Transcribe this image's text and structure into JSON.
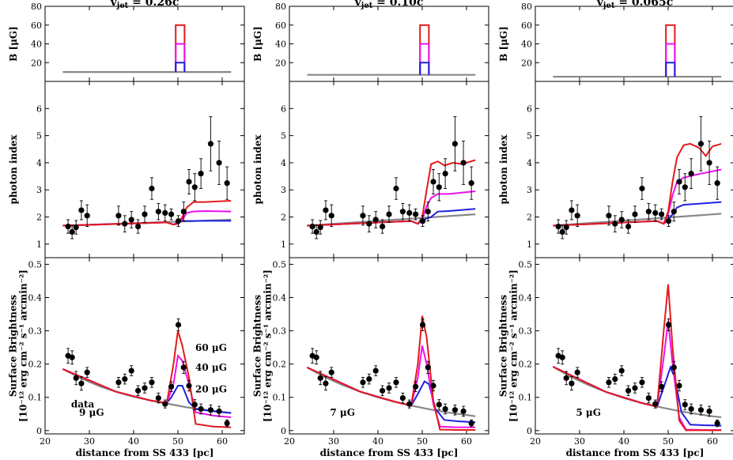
{
  "chart_data": {
    "type": "line",
    "xlabel": "distance from SS 433 [pc]",
    "xlim": [
      20,
      65
    ],
    "xticks": [
      20,
      30,
      40,
      50,
      60
    ],
    "rows": [
      {
        "key": "B",
        "ylabel": [
          "B [μG]"
        ],
        "ylim": [
          0,
          80
        ],
        "yticks": [
          20,
          40,
          60,
          80
        ]
      },
      {
        "key": "index",
        "ylabel": [
          "photon index"
        ],
        "ylim": [
          0.5,
          7
        ],
        "yticks": [
          1,
          2,
          3,
          4,
          5,
          6
        ]
      },
      {
        "key": "sb",
        "ylabel": [
          "Surface Brightness",
          "[10⁻¹² erg cm⁻² s⁻¹ arcmin⁻²]"
        ],
        "ylim": [
          -0.01,
          0.52
        ],
        "yticks": [
          0,
          0.1,
          0.2,
          0.3,
          0.4,
          0.5
        ]
      }
    ],
    "series_styles": [
      {
        "name": "60 μG",
        "color": "#e41a1c"
      },
      {
        "name": "40 μG",
        "color": "#ee10ee"
      },
      {
        "name": "20 μG",
        "color": "#1f1fe0"
      },
      {
        "name": "background",
        "color": "#888888"
      }
    ],
    "data_label": "data",
    "data": {
      "index": {
        "x": [
          25.2,
          26.1,
          27.0,
          28.2,
          29.5,
          36.6,
          38.0,
          39.5,
          41.0,
          42.5,
          44.1,
          45.6,
          47.1,
          48.5,
          50.1,
          51.3,
          52.5,
          53.8,
          55.2,
          57.4,
          59.3,
          61.1
        ],
        "y": [
          1.65,
          1.45,
          1.62,
          2.25,
          2.05,
          2.05,
          1.75,
          1.9,
          1.65,
          2.1,
          3.05,
          2.2,
          2.15,
          2.1,
          1.85,
          2.2,
          3.3,
          3.1,
          3.6,
          4.7,
          4.0,
          3.25
        ],
        "err": [
          0.25,
          0.25,
          0.25,
          0.35,
          0.4,
          0.35,
          0.3,
          0.3,
          0.25,
          0.3,
          0.4,
          0.3,
          0.3,
          0.2,
          0.2,
          0.35,
          0.45,
          0.5,
          0.55,
          1.0,
          0.8,
          0.6
        ]
      },
      "sb": {
        "x": [
          25.2,
          26.1,
          27.0,
          28.2,
          29.5,
          36.6,
          38.0,
          39.5,
          41.0,
          42.5,
          44.1,
          45.6,
          47.1,
          48.5,
          50.1,
          51.3,
          52.5,
          53.8,
          55.2,
          57.4,
          59.3,
          61.1
        ],
        "y": [
          0.225,
          0.22,
          0.158,
          0.142,
          0.175,
          0.145,
          0.155,
          0.18,
          0.12,
          0.128,
          0.145,
          0.098,
          0.08,
          0.132,
          0.318,
          0.19,
          0.135,
          0.078,
          0.065,
          0.062,
          0.058,
          0.022
        ],
        "err": [
          0.022,
          0.02,
          0.02,
          0.02,
          0.015,
          0.015,
          0.015,
          0.015,
          0.015,
          0.015,
          0.015,
          0.015,
          0.012,
          0.015,
          0.018,
          0.018,
          0.016,
          0.015,
          0.015,
          0.015,
          0.015,
          0.01
        ]
      }
    },
    "panels": [
      {
        "title": "v_jet = 0.26c",
        "bg_label": "9 μG",
        "b_base": 10,
        "models": {
          "background": {
            "index": {
              "x": [
                24,
                62
              ],
              "y": [
                1.68,
                1.9
              ]
            },
            "sb": {
              "x": [
                24,
                28,
                32,
                36,
                40,
                44,
                48,
                52,
                56,
                60,
                62
              ],
              "y": [
                0.185,
                0.158,
                0.135,
                0.117,
                0.102,
                0.09,
                0.08,
                0.07,
                0.063,
                0.056,
                0.053
              ]
            }
          },
          "20 μG": {
            "index": {
              "x": [
                24,
                47.5,
                49,
                50,
                51,
                52,
                53.5,
                56,
                62
              ],
              "y": [
                1.68,
                1.8,
                1.72,
                1.8,
                1.85,
                1.85,
                1.85,
                1.86,
                1.86
              ]
            },
            "sb": {
              "x": [
                24,
                36,
                44,
                47.5,
                48.5,
                50,
                51,
                52.5,
                54,
                58,
                62
              ],
              "y": [
                0.185,
                0.117,
                0.09,
                0.083,
                0.1,
                0.135,
                0.135,
                0.085,
                0.065,
                0.058,
                0.053
              ]
            }
          },
          "40 μG": {
            "index": {
              "x": [
                24,
                47.5,
                49,
                50,
                51,
                52,
                53.5,
                56,
                62
              ],
              "y": [
                1.68,
                1.8,
                1.72,
                1.75,
                1.9,
                2.15,
                2.2,
                2.22,
                2.2
              ]
            },
            "sb": {
              "x": [
                24,
                36,
                44,
                47.5,
                49,
                50,
                51,
                52.5,
                54,
                58,
                62
              ],
              "y": [
                0.185,
                0.117,
                0.09,
                0.083,
                0.14,
                0.225,
                0.21,
                0.14,
                0.055,
                0.045,
                0.04
              ]
            }
          },
          "60 μG": {
            "index": {
              "x": [
                24,
                47.5,
                49,
                50,
                51,
                52,
                53.5,
                56,
                62
              ],
              "y": [
                1.68,
                1.8,
                1.72,
                1.75,
                2.0,
                2.35,
                2.55,
                2.55,
                2.6
              ]
            },
            "sb": {
              "x": [
                24,
                36,
                44,
                47.5,
                49,
                50,
                51,
                52.5,
                54,
                58,
                62
              ],
              "y": [
                0.185,
                0.117,
                0.09,
                0.083,
                0.2,
                0.3,
                0.255,
                0.16,
                0.02,
                0.012,
                0.01
              ]
            }
          }
        }
      },
      {
        "title": "v_jet = 0.10c",
        "bg_label": "7 μG",
        "b_base": 7,
        "models": {
          "background": {
            "index": {
              "x": [
                24,
                62
              ],
              "y": [
                1.68,
                2.1
              ]
            },
            "sb": {
              "x": [
                24,
                28,
                32,
                36,
                40,
                44,
                48,
                52,
                56,
                60,
                62
              ],
              "y": [
                0.19,
                0.161,
                0.137,
                0.117,
                0.1,
                0.086,
                0.074,
                0.063,
                0.054,
                0.047,
                0.043
              ]
            }
          },
          "20 μG": {
            "index": {
              "x": [
                24,
                47.5,
                49,
                50,
                51,
                52,
                53.5,
                56,
                62
              ],
              "y": [
                1.68,
                1.85,
                1.75,
                1.85,
                1.95,
                2.0,
                2.2,
                2.22,
                2.3
              ]
            },
            "sb": {
              "x": [
                24,
                36,
                44,
                47.5,
                49,
                50.5,
                51.5,
                53,
                55,
                58,
                62
              ],
              "y": [
                0.19,
                0.117,
                0.086,
                0.075,
                0.11,
                0.148,
                0.14,
                0.065,
                0.032,
                0.028,
                0.025
              ]
            }
          },
          "40 μG": {
            "index": {
              "x": [
                24,
                47.5,
                49,
                50,
                51,
                52,
                53.5,
                56,
                62
              ],
              "y": [
                1.68,
                1.85,
                1.75,
                1.9,
                2.4,
                2.7,
                2.85,
                2.85,
                2.95
              ]
            },
            "sb": {
              "x": [
                24,
                36,
                44,
                47.5,
                49,
                50,
                51,
                52.5,
                54,
                58,
                62
              ],
              "y": [
                0.19,
                0.117,
                0.086,
                0.075,
                0.16,
                0.255,
                0.2,
                0.08,
                0.012,
                0.01,
                0.01
              ]
            }
          },
          "60 μG": {
            "index": {
              "x": [
                24,
                47.5,
                49,
                50,
                51,
                52,
                53.5,
                55,
                57,
                59,
                62
              ],
              "y": [
                1.68,
                1.85,
                1.75,
                2.0,
                3.0,
                3.95,
                4.05,
                3.9,
                4.0,
                3.95,
                4.1
              ]
            },
            "sb": {
              "x": [
                24,
                36,
                44,
                47.5,
                49,
                50,
                51,
                52.5,
                54,
                58,
                62
              ],
              "y": [
                0.19,
                0.117,
                0.086,
                0.075,
                0.2,
                0.345,
                0.28,
                0.09,
                0.003,
                0.002,
                0.002
              ]
            }
          }
        }
      },
      {
        "title": "v_jet = 0.065c",
        "bg_label": "5 μG",
        "b_base": 5,
        "models": {
          "background": {
            "index": {
              "x": [
                24,
                62
              ],
              "y": [
                1.68,
                2.12
              ]
            },
            "sb": {
              "x": [
                24,
                28,
                32,
                36,
                40,
                44,
                48,
                52,
                56,
                60,
                62
              ],
              "y": [
                0.192,
                0.162,
                0.137,
                0.116,
                0.098,
                0.083,
                0.071,
                0.06,
                0.051,
                0.043,
                0.04
              ]
            }
          },
          "20 μG": {
            "index": {
              "x": [
                24,
                47.5,
                49,
                50,
                51,
                52,
                53.5,
                56,
                62
              ],
              "y": [
                1.68,
                1.85,
                1.75,
                1.9,
                2.1,
                2.35,
                2.45,
                2.48,
                2.55
              ]
            },
            "sb": {
              "x": [
                24,
                36,
                44,
                47.5,
                49,
                50.5,
                51.5,
                53,
                55,
                58,
                62
              ],
              "y": [
                0.192,
                0.116,
                0.083,
                0.072,
                0.13,
                0.19,
                0.16,
                0.055,
                0.018,
                0.016,
                0.015
              ]
            }
          },
          "40 μG": {
            "index": {
              "x": [
                24,
                47.5,
                49,
                50,
                51,
                52,
                53.5,
                56,
                62
              ],
              "y": [
                1.68,
                1.85,
                1.75,
                2.1,
                2.8,
                3.3,
                3.45,
                3.55,
                3.75
              ]
            },
            "sb": {
              "x": [
                24,
                36,
                44,
                47.5,
                49,
                50,
                51,
                52.5,
                54,
                58,
                62
              ],
              "y": [
                0.192,
                0.116,
                0.083,
                0.072,
                0.22,
                0.33,
                0.2,
                0.04,
                0.003,
                0.002,
                0.002
              ]
            }
          },
          "60 μG": {
            "index": {
              "x": [
                24,
                47.5,
                49,
                50,
                51,
                52,
                53.5,
                55,
                57,
                58.5,
                60,
                62
              ],
              "y": [
                1.68,
                1.85,
                1.75,
                2.2,
                3.3,
                4.2,
                4.65,
                4.7,
                4.55,
                4.25,
                4.6,
                4.7
              ]
            },
            "sb": {
              "x": [
                24,
                36,
                44,
                47.5,
                49,
                50,
                51,
                52.5,
                54,
                58,
                62
              ],
              "y": [
                0.192,
                0.116,
                0.083,
                0.072,
                0.3,
                0.44,
                0.25,
                0.03,
                0.001,
                0.001,
                0.001
              ]
            }
          }
        }
      }
    ]
  }
}
